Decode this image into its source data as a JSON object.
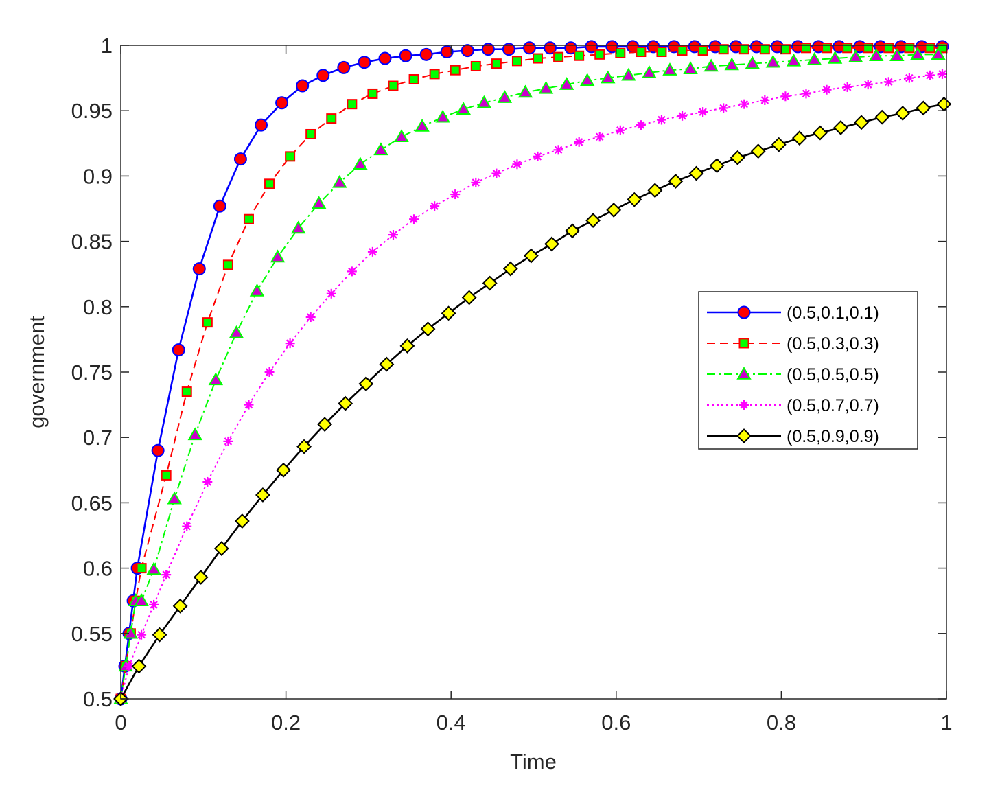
{
  "chart_data": {
    "type": "line",
    "title": "",
    "xlabel": "Time",
    "ylabel": "government",
    "xlim": [
      0,
      1
    ],
    "ylim": [
      0.5,
      1
    ],
    "xticks": [
      0,
      0.2,
      0.4,
      0.6,
      0.8,
      1
    ],
    "xtick_labels": [
      "0",
      "0.2",
      "0.4",
      "0.6",
      "0.8",
      "1"
    ],
    "yticks": [
      0.5,
      0.55,
      0.6,
      0.65,
      0.7,
      0.75,
      0.8,
      0.85,
      0.9,
      0.95,
      1
    ],
    "ytick_labels": [
      "0.5",
      "0.55",
      "0.6",
      "0.65",
      "0.7",
      "0.75",
      "0.8",
      "0.85",
      "0.9",
      "0.95",
      "1"
    ],
    "grid": false,
    "legend_position": "right-middle",
    "series": [
      {
        "name": "(0.5,0.1,0.1)",
        "color": "#0000ff",
        "marker": "circle",
        "marker_fill": "#ff0000",
        "dash": "solid",
        "x": [
          0,
          0.005,
          0.01,
          0.015,
          0.02,
          0.045,
          0.07,
          0.095,
          0.12,
          0.145,
          0.17,
          0.195,
          0.22,
          0.245,
          0.27,
          0.295,
          0.32,
          0.345,
          0.37,
          0.395,
          0.42,
          0.445,
          0.47,
          0.495,
          0.52,
          0.545,
          0.57,
          0.595,
          0.62,
          0.645,
          0.67,
          0.695,
          0.72,
          0.745,
          0.77,
          0.795,
          0.82,
          0.845,
          0.87,
          0.895,
          0.92,
          0.945,
          0.97,
          0.995
        ],
        "y": [
          0.5,
          0.525,
          0.55,
          0.575,
          0.6,
          0.69,
          0.767,
          0.829,
          0.877,
          0.913,
          0.939,
          0.956,
          0.969,
          0.977,
          0.983,
          0.987,
          0.99,
          0.992,
          0.993,
          0.995,
          0.996,
          0.997,
          0.997,
          0.998,
          0.998,
          0.998,
          0.999,
          0.999,
          0.999,
          0.999,
          0.999,
          0.999,
          0.999,
          0.999,
          0.999,
          0.999,
          0.999,
          0.999,
          0.999,
          0.999,
          0.999,
          0.999,
          0.999,
          0.999
        ]
      },
      {
        "name": "(0.5,0.3,0.3)",
        "color": "#ff0000",
        "marker": "square",
        "marker_fill": "#00ff00",
        "dash": "dashed",
        "x": [
          0,
          0.006,
          0.012,
          0.018,
          0.025,
          0.055,
          0.08,
          0.105,
          0.13,
          0.155,
          0.18,
          0.205,
          0.23,
          0.255,
          0.28,
          0.305,
          0.33,
          0.355,
          0.38,
          0.405,
          0.43,
          0.455,
          0.48,
          0.505,
          0.53,
          0.555,
          0.58,
          0.605,
          0.63,
          0.655,
          0.68,
          0.705,
          0.73,
          0.755,
          0.78,
          0.805,
          0.83,
          0.855,
          0.88,
          0.905,
          0.93,
          0.955,
          0.98,
          0.995
        ],
        "y": [
          0.5,
          0.525,
          0.55,
          0.575,
          0.6,
          0.671,
          0.735,
          0.788,
          0.832,
          0.867,
          0.894,
          0.915,
          0.932,
          0.944,
          0.955,
          0.963,
          0.969,
          0.974,
          0.978,
          0.981,
          0.984,
          0.986,
          0.988,
          0.99,
          0.991,
          0.992,
          0.993,
          0.994,
          0.995,
          0.995,
          0.996,
          0.996,
          0.997,
          0.997,
          0.997,
          0.997,
          0.998,
          0.998,
          0.998,
          0.998,
          0.998,
          0.998,
          0.998,
          0.998
        ]
      },
      {
        "name": "(0.5,0.5,0.5)",
        "color": "#00ff00",
        "marker": "triangle",
        "marker_fill": "#cc00cc",
        "dash": "dashdot",
        "x": [
          0,
          0.006,
          0.012,
          0.018,
          0.025,
          0.04,
          0.065,
          0.09,
          0.115,
          0.14,
          0.165,
          0.19,
          0.215,
          0.24,
          0.265,
          0.29,
          0.315,
          0.34,
          0.365,
          0.39,
          0.415,
          0.44,
          0.465,
          0.49,
          0.515,
          0.54,
          0.565,
          0.59,
          0.615,
          0.64,
          0.665,
          0.69,
          0.715,
          0.74,
          0.765,
          0.79,
          0.815,
          0.84,
          0.865,
          0.89,
          0.915,
          0.94,
          0.965,
          0.99
        ],
        "y": [
          0.5,
          0.525,
          0.55,
          0.575,
          0.575,
          0.599,
          0.653,
          0.702,
          0.744,
          0.78,
          0.812,
          0.838,
          0.86,
          0.879,
          0.895,
          0.909,
          0.92,
          0.93,
          0.938,
          0.945,
          0.951,
          0.956,
          0.96,
          0.964,
          0.967,
          0.97,
          0.973,
          0.975,
          0.977,
          0.979,
          0.981,
          0.982,
          0.984,
          0.985,
          0.986,
          0.987,
          0.988,
          0.989,
          0.99,
          0.991,
          0.992,
          0.992,
          0.993,
          0.993
        ]
      },
      {
        "name": "(0.5,0.7,0.7)",
        "color": "#ff00ff",
        "marker": "asterisk",
        "marker_fill": "#ff00ff",
        "dash": "dotted",
        "x": [
          0,
          0.01,
          0.025,
          0.04,
          0.055,
          0.08,
          0.105,
          0.13,
          0.155,
          0.18,
          0.205,
          0.23,
          0.255,
          0.28,
          0.305,
          0.33,
          0.355,
          0.38,
          0.405,
          0.43,
          0.455,
          0.48,
          0.505,
          0.53,
          0.555,
          0.58,
          0.605,
          0.63,
          0.655,
          0.68,
          0.705,
          0.73,
          0.755,
          0.78,
          0.805,
          0.83,
          0.855,
          0.88,
          0.905,
          0.93,
          0.955,
          0.98,
          0.995
        ],
        "y": [
          0.5,
          0.525,
          0.549,
          0.572,
          0.595,
          0.632,
          0.666,
          0.697,
          0.725,
          0.75,
          0.772,
          0.792,
          0.81,
          0.827,
          0.842,
          0.855,
          0.867,
          0.877,
          0.886,
          0.895,
          0.902,
          0.909,
          0.915,
          0.92,
          0.926,
          0.93,
          0.935,
          0.939,
          0.943,
          0.946,
          0.949,
          0.952,
          0.955,
          0.958,
          0.961,
          0.963,
          0.966,
          0.968,
          0.97,
          0.972,
          0.975,
          0.977,
          0.978
        ]
      },
      {
        "name": "(0.5,0.9,0.9)",
        "color": "#000000",
        "marker": "diamond",
        "marker_fill": "#ffff00",
        "dash": "solid",
        "x": [
          0,
          0.022,
          0.047,
          0.072,
          0.097,
          0.122,
          0.147,
          0.172,
          0.197,
          0.222,
          0.247,
          0.272,
          0.297,
          0.322,
          0.347,
          0.372,
          0.397,
          0.422,
          0.447,
          0.472,
          0.497,
          0.522,
          0.547,
          0.572,
          0.597,
          0.622,
          0.647,
          0.672,
          0.697,
          0.722,
          0.747,
          0.772,
          0.797,
          0.822,
          0.847,
          0.872,
          0.897,
          0.922,
          0.947,
          0.972,
          0.997
        ],
        "y": [
          0.5,
          0.525,
          0.549,
          0.571,
          0.593,
          0.615,
          0.636,
          0.656,
          0.675,
          0.693,
          0.71,
          0.726,
          0.741,
          0.756,
          0.77,
          0.783,
          0.795,
          0.807,
          0.818,
          0.829,
          0.839,
          0.848,
          0.858,
          0.866,
          0.874,
          0.882,
          0.889,
          0.896,
          0.902,
          0.908,
          0.914,
          0.919,
          0.924,
          0.929,
          0.933,
          0.937,
          0.941,
          0.945,
          0.948,
          0.952,
          0.955
        ]
      }
    ]
  }
}
